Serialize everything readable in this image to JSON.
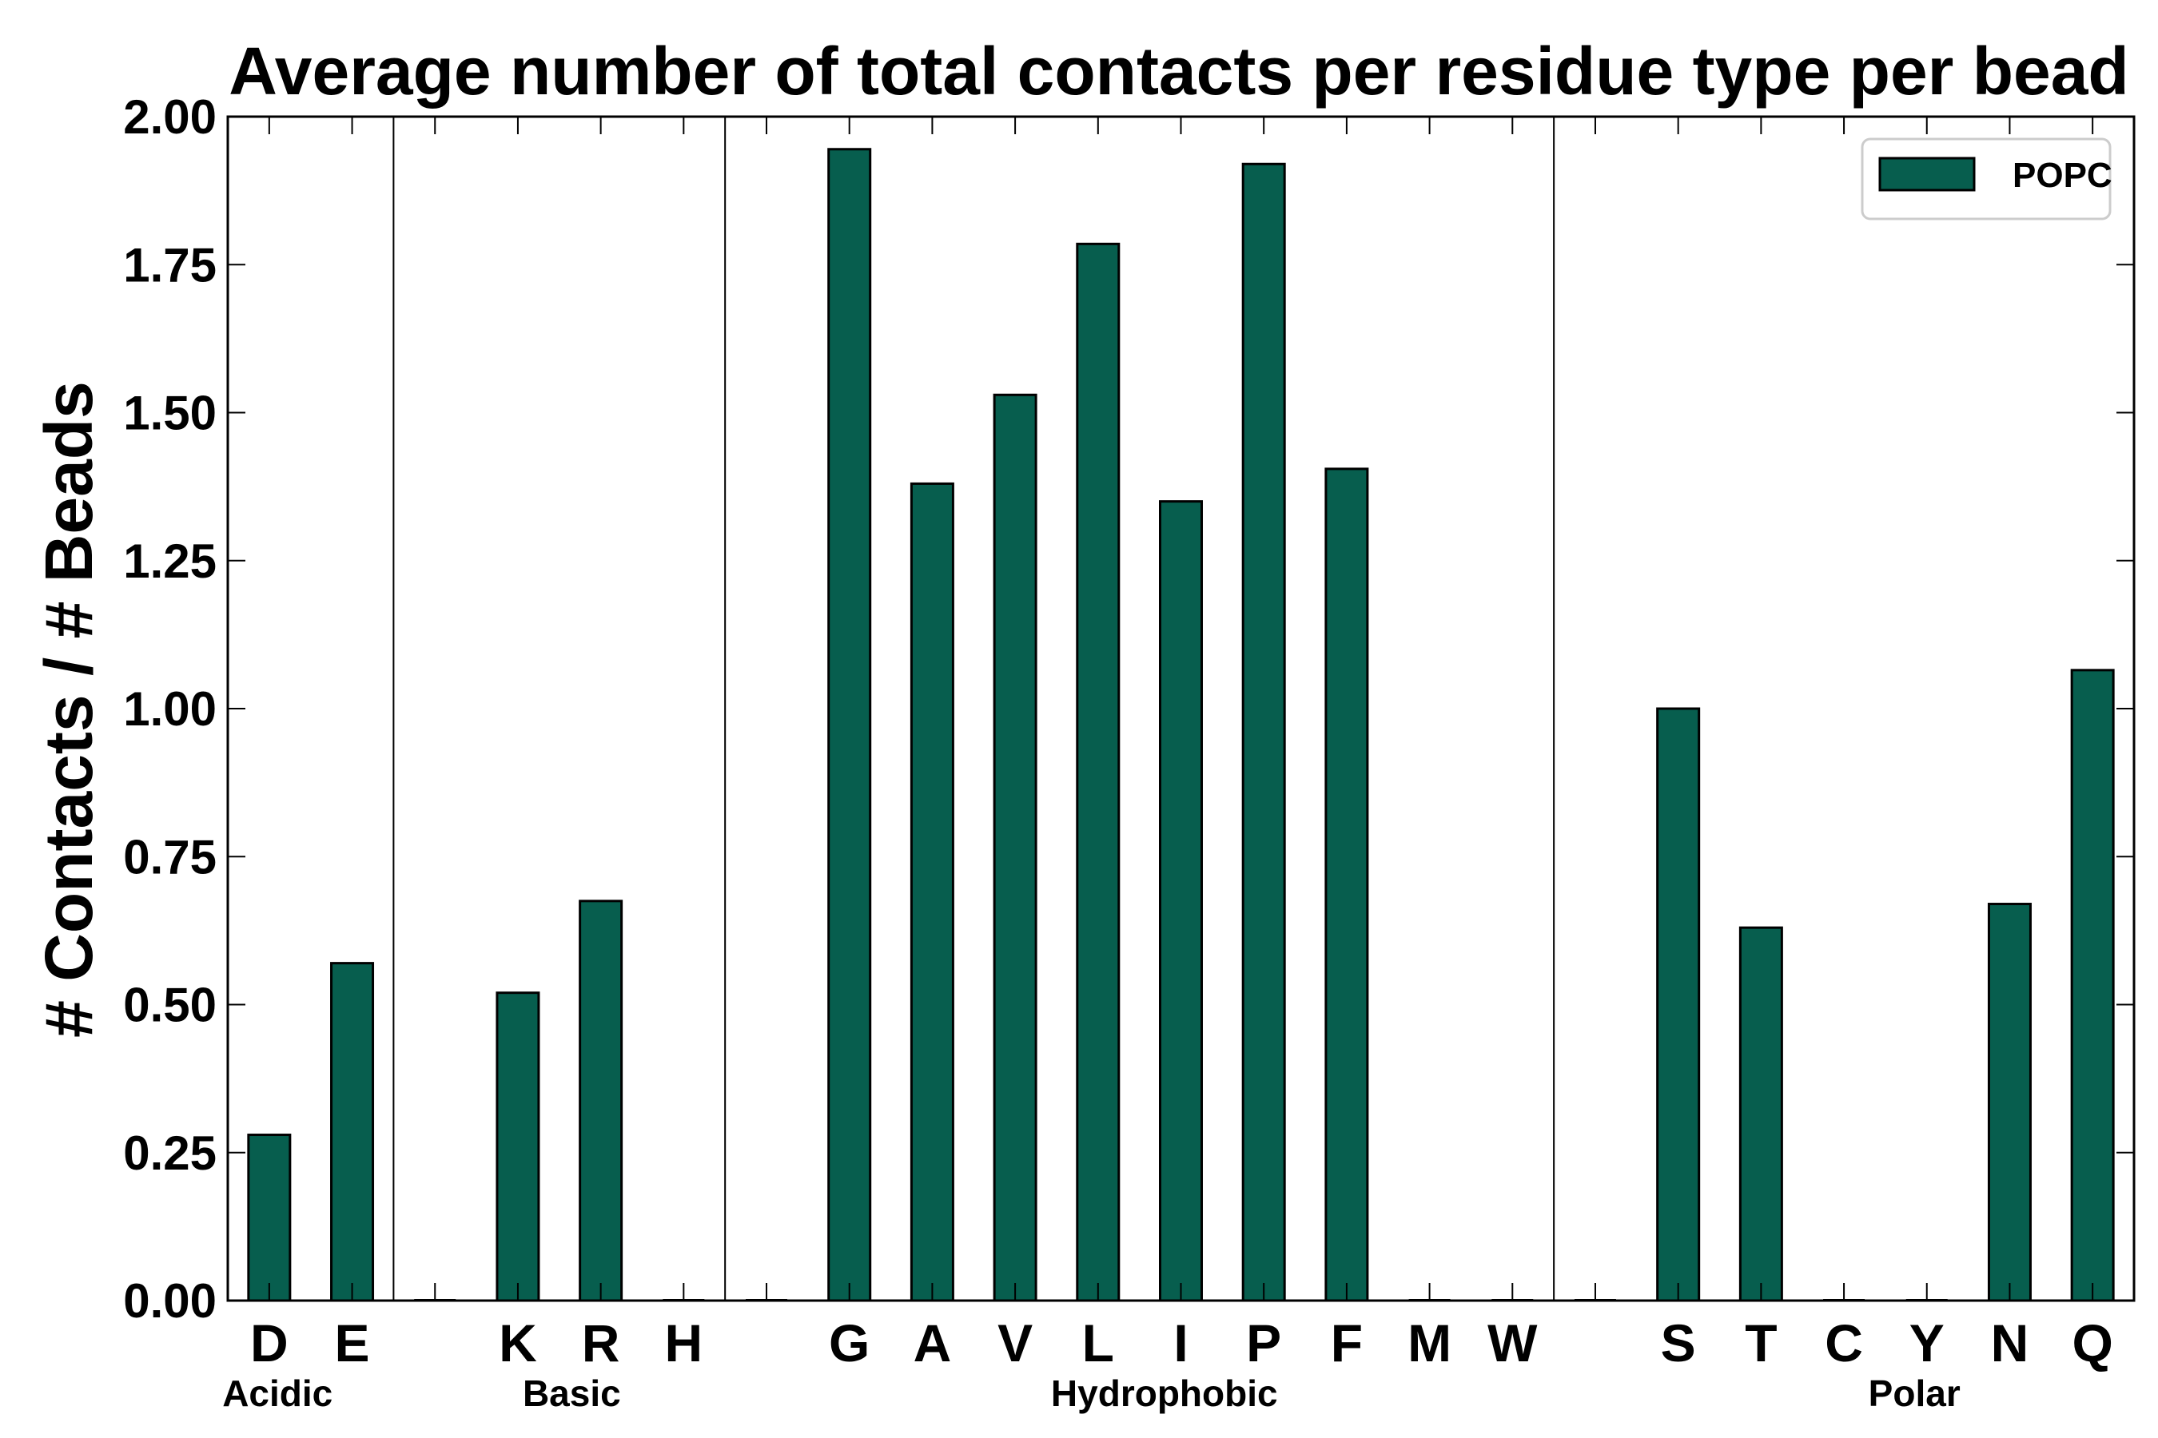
{
  "chart_data": {
    "type": "bar",
    "title": "Average number of total contacts per residue type per bead",
    "xlabel": "",
    "ylabel": "# Contacts / # Beads",
    "ylim": [
      0,
      2.0
    ],
    "yticks": [
      "0.00",
      "0.25",
      "0.50",
      "0.75",
      "1.00",
      "1.25",
      "1.50",
      "1.75",
      "2.00"
    ],
    "ytick_values": [
      0,
      0.25,
      0.5,
      0.75,
      1.0,
      1.25,
      1.5,
      1.75,
      2.0
    ],
    "grid": false,
    "legend_position": "top-right",
    "bar_color": "#075e4e",
    "categories": [
      "D",
      "E",
      "",
      "K",
      "R",
      "H",
      "",
      "G",
      "A",
      "V",
      "L",
      "I",
      "P",
      "F",
      "M",
      "W",
      "",
      "S",
      "T",
      "C",
      "Y",
      "N",
      "Q"
    ],
    "series": [
      {
        "name": "POPC",
        "values": [
          0.28,
          0.57,
          0,
          0.52,
          0.675,
          0,
          0,
          1.945,
          1.38,
          1.53,
          1.785,
          1.35,
          1.92,
          1.405,
          0,
          0,
          0,
          1.0,
          0.63,
          0,
          0,
          0.67,
          1.065
        ]
      }
    ],
    "groups": [
      {
        "label": "Acidic",
        "label_at": 0.1
      },
      {
        "label": "Basic",
        "label_at": 3.65
      },
      {
        "label": "Hydrophobic",
        "label_at": 10.8
      },
      {
        "label": "Polar",
        "label_at": 19.85
      }
    ],
    "group_separators": [
      2,
      6,
      16
    ]
  }
}
